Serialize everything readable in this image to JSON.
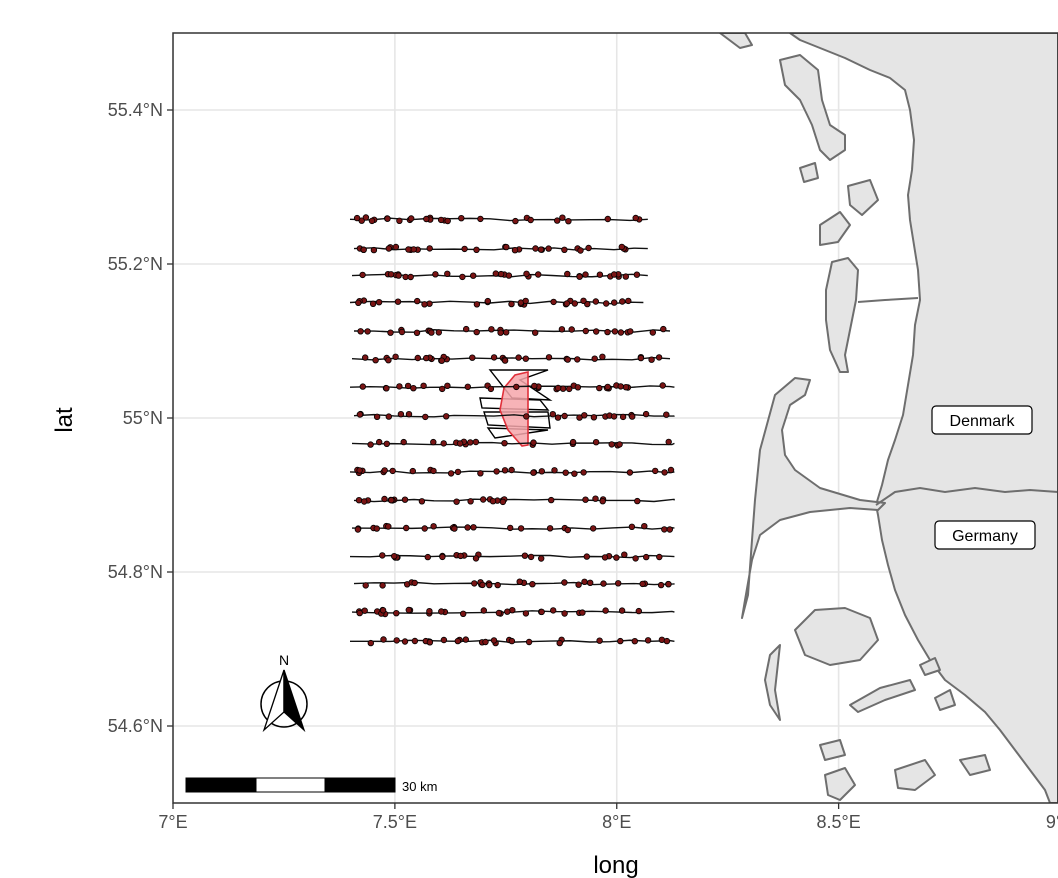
{
  "map": {
    "xlabel": "long",
    "ylabel": "lat",
    "x_ticks": [
      "7°E",
      "7.5°E",
      "8°E",
      "8.5°E",
      "9°E"
    ],
    "x_tick_values": [
      7.0,
      7.5,
      8.0,
      8.5,
      9.0
    ],
    "y_ticks": [
      "54.6°N",
      "54.8°N",
      "55°N",
      "55.2°N",
      "55.4°N"
    ],
    "y_tick_values": [
      54.6,
      54.8,
      55.0,
      55.2,
      55.4
    ],
    "xlim": [
      7.0,
      9.0
    ],
    "ylim": [
      54.5,
      55.5
    ],
    "grid": true,
    "countries": [
      {
        "name": "Denmark",
        "lon": 8.78,
        "lat": 55.0
      },
      {
        "name": "Germany",
        "lon": 8.78,
        "lat": 54.85
      }
    ],
    "north_arrow_label": "N",
    "scale_bar_label": "30 km",
    "colors": {
      "land": "#e5e5e5",
      "coast": "#6e6e6e",
      "transect": "#111111",
      "sighting": "#7a1414",
      "windfarm_fill": "#f6a6aa",
      "windfarm_stroke": "#e0303a"
    },
    "transects": {
      "lats": [
        54.71,
        54.748,
        54.785,
        54.82,
        54.857,
        54.893,
        54.93,
        54.967,
        55.003,
        55.04,
        55.077,
        55.113,
        55.15,
        55.185,
        55.22,
        55.258
      ],
      "lon_start": 7.4,
      "lon_end": [
        8.13,
        8.13,
        8.13,
        8.13,
        8.13,
        8.13,
        8.13,
        8.13,
        8.13,
        8.13,
        8.12,
        8.12,
        8.06,
        8.07,
        8.07,
        8.07
      ]
    }
  }
}
